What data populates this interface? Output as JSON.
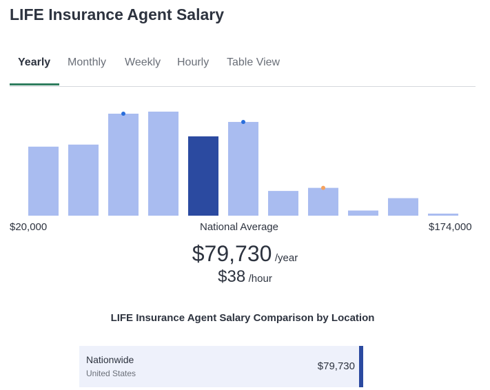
{
  "page": {
    "title": "LIFE Insurance Agent Salary"
  },
  "tabs": [
    {
      "label": "Yearly",
      "active": true
    },
    {
      "label": "Monthly",
      "active": false
    },
    {
      "label": "Weekly",
      "active": false
    },
    {
      "label": "Hourly",
      "active": false
    },
    {
      "label": "Table View",
      "active": false
    }
  ],
  "chart_data": {
    "type": "bar",
    "title": "",
    "xlabel": "",
    "ylabel": "",
    "x_min_label": "$20,000",
    "x_max_label": "$174,000",
    "center_label": "National Average",
    "values": [
      67,
      69,
      99,
      101,
      77,
      91,
      24,
      27,
      5,
      17,
      2
    ],
    "highlight_index": 4,
    "markers": [
      {
        "bar_index": 2,
        "color": "#2a6edb"
      },
      {
        "bar_index": 5,
        "color": "#2a6edb"
      },
      {
        "bar_index": 7,
        "color": "#f5a25d"
      }
    ],
    "colors": {
      "bar": "#a9bcf0",
      "highlight": "#2b4aa0"
    },
    "grid": false
  },
  "summary": {
    "yearly_amount": "$79,730",
    "yearly_unit": "/year",
    "hourly_amount": "$38",
    "hourly_unit": "/hour"
  },
  "comparison": {
    "title": "LIFE Insurance Agent Salary Comparison by Location",
    "rows": [
      {
        "name": "Nationwide",
        "sub": "United States",
        "value": "$79,730"
      }
    ]
  },
  "colors": {
    "accent_tab": "#2f7d5e",
    "highlight_bar": "#2b4aa0"
  }
}
